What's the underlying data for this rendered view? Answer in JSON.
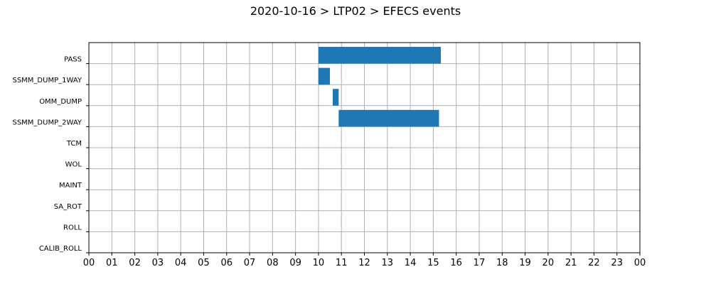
{
  "chart_data": {
    "type": "bar",
    "orientation": "horizontal-timeline",
    "title": "2020-10-16 > LTP02 > EFECS events",
    "xlabel": "",
    "ylabel": "",
    "xlim": [
      0,
      24
    ],
    "x_ticks": [
      {
        "value": 0,
        "label": "00"
      },
      {
        "value": 1,
        "label": "01"
      },
      {
        "value": 2,
        "label": "02"
      },
      {
        "value": 3,
        "label": "03"
      },
      {
        "value": 4,
        "label": "04"
      },
      {
        "value": 5,
        "label": "05"
      },
      {
        "value": 6,
        "label": "06"
      },
      {
        "value": 7,
        "label": "07"
      },
      {
        "value": 8,
        "label": "08"
      },
      {
        "value": 9,
        "label": "09"
      },
      {
        "value": 10,
        "label": "10"
      },
      {
        "value": 11,
        "label": "11"
      },
      {
        "value": 12,
        "label": "12"
      },
      {
        "value": 13,
        "label": "13"
      },
      {
        "value": 14,
        "label": "14"
      },
      {
        "value": 15,
        "label": "15"
      },
      {
        "value": 16,
        "label": "16"
      },
      {
        "value": 17,
        "label": "17"
      },
      {
        "value": 18,
        "label": "18"
      },
      {
        "value": 19,
        "label": "19"
      },
      {
        "value": 20,
        "label": "20"
      },
      {
        "value": 21,
        "label": "21"
      },
      {
        "value": 22,
        "label": "22"
      },
      {
        "value": 23,
        "label": "23"
      },
      {
        "value": 24,
        "label": "00"
      }
    ],
    "categories": [
      "PASS",
      "SSMM_DUMP_1WAY",
      "OMM_DUMP",
      "SSMM_DUMP_2WAY",
      "TCM",
      "WOL",
      "MAINT",
      "SA_ROT",
      "ROLL",
      "CALIB_ROLL"
    ],
    "events": [
      {
        "category": "PASS",
        "start": 10.0,
        "end": 15.33
      },
      {
        "category": "SSMM_DUMP_1WAY",
        "start": 10.0,
        "end": 10.5
      },
      {
        "category": "OMM_DUMP",
        "start": 10.62,
        "end": 10.88
      },
      {
        "category": "SSMM_DUMP_2WAY",
        "start": 10.88,
        "end": 15.25
      }
    ],
    "grid": true,
    "bar_color": "#1f77b4",
    "grid_color": "#b0b0b0"
  }
}
